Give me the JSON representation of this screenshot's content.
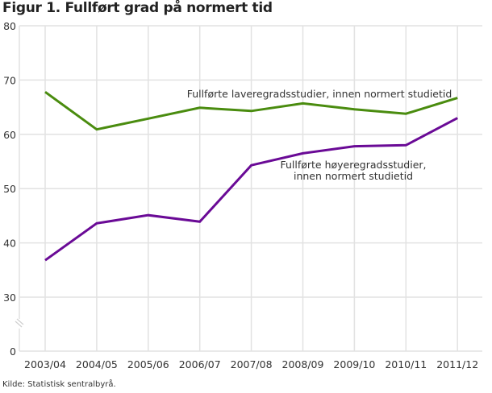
{
  "title": "Figur 1. Fullført grad på normert tid",
  "source": "Kilde: Statistisk sentralbyrå.",
  "colors": {
    "green": "#4a8c0f",
    "purple": "#6a0a96",
    "grid": "#e2e2e2"
  },
  "chart_data": {
    "type": "line",
    "title": "Figur 1. Fullført grad på normert tid",
    "xlabel": "",
    "ylabel": "",
    "ylim": [
      0,
      80
    ],
    "y_axis_break": "between 0 and 30",
    "yticks": [
      0,
      30,
      40,
      50,
      60,
      70,
      80
    ],
    "grid": true,
    "legend_position": "inline labels",
    "categories": [
      "2003/04",
      "2004/05",
      "2005/06",
      "2006/07",
      "2007/08",
      "2008/09",
      "2009/10",
      "2010/11",
      "2011/12"
    ],
    "series": [
      {
        "name": "Fullførte laveregradsstudier, innen normert studietid",
        "color": "#4a8c0f",
        "values": [
          67.8,
          60.9,
          62.9,
          64.9,
          64.3,
          65.7,
          64.6,
          63.8,
          66.7
        ]
      },
      {
        "name": "Fullførte høyeregradsstudier, innen normert studietid",
        "color": "#6a0a96",
        "values": [
          36.8,
          43.6,
          45.1,
          43.9,
          54.3,
          56.5,
          57.8,
          58.0,
          63.0
        ]
      }
    ],
    "annotations": [
      "Fullførte laveregradsstudier, innen normert studietid",
      "Fullførte høyeregradsstudier,",
      "innen normert studietid"
    ]
  }
}
